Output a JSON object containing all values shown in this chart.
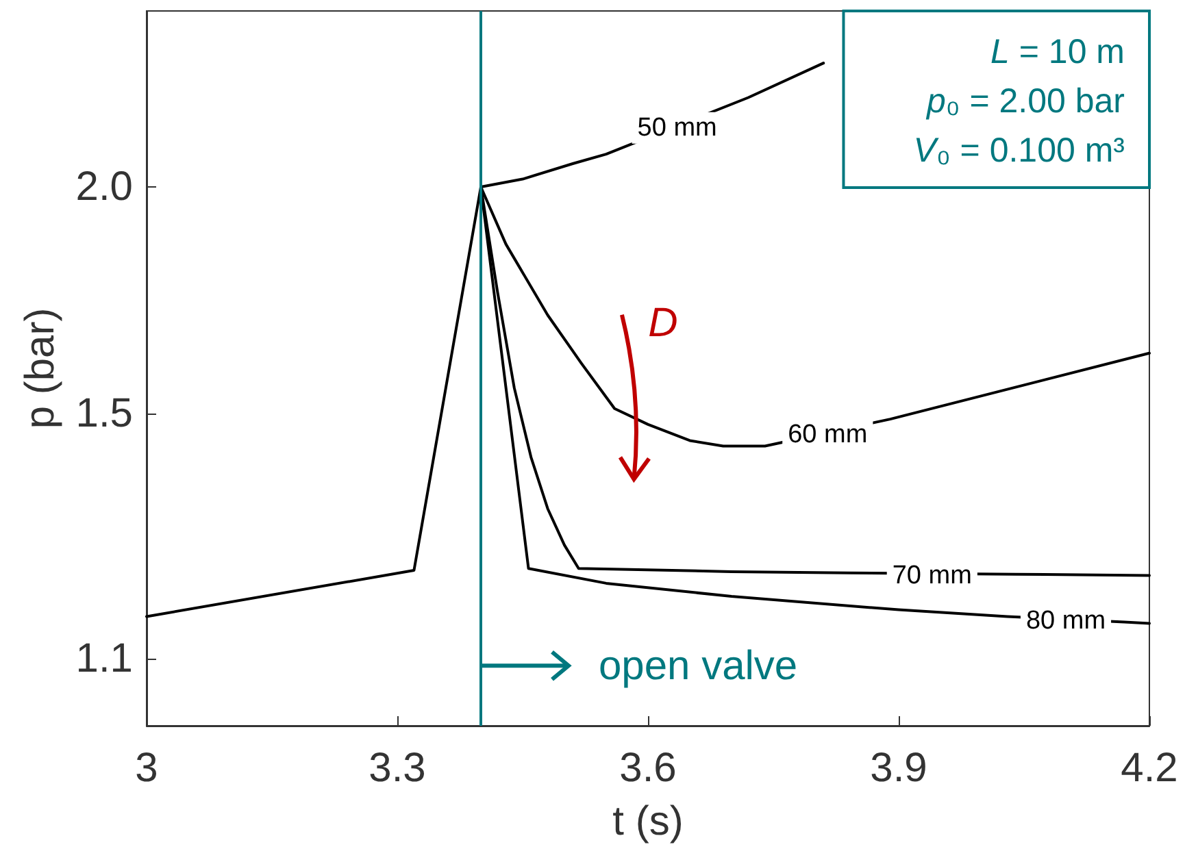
{
  "chart_data": {
    "type": "line",
    "xlabel": "t (s)",
    "ylabel": "p (bar)",
    "xlim": [
      3,
      4.2
    ],
    "xticks": [
      3,
      3.3,
      3.6,
      3.9,
      4.2
    ],
    "ylim": [
      1.01,
      2.5
    ],
    "yticks": [
      1.1,
      1.5,
      {
        "value": 2,
        "label": "2.0"
      }
    ],
    "log": "y",
    "grid": false,
    "legend": false,
    "line_style": "solid",
    "series": [
      {
        "color": "#000000",
        "x": [
          3,
          3.32,
          3.4
        ],
        "values": [
          1.16,
          1.23,
          2.0
        ]
      },
      {
        "name": "50 mm",
        "color": "#000000",
        "x": [
          3.4,
          3.45,
          3.51,
          3.55,
          3.72,
          3.81
        ],
        "values": [
          2.0,
          2.02,
          2.06,
          2.085,
          2.24,
          2.34
        ]
      },
      {
        "name": "60 mm",
        "color": "#000000",
        "x": [
          3.4,
          3.43,
          3.48,
          3.52,
          3.56,
          3.6,
          3.65,
          3.69,
          3.74,
          3.89,
          4.2
        ],
        "values": [
          2.0,
          1.86,
          1.7,
          1.6,
          1.51,
          1.48,
          1.45,
          1.44,
          1.44,
          1.49,
          1.62
        ]
      },
      {
        "name": "70 mm",
        "color": "#000000",
        "x": [
          3.4,
          3.42,
          3.44,
          3.46,
          3.48,
          3.5,
          3.517,
          3.7,
          3.84,
          4.04,
          4.2
        ],
        "values": [
          2.0,
          1.75,
          1.55,
          1.42,
          1.33,
          1.27,
          1.233,
          1.228,
          1.226,
          1.224,
          1.222
        ]
      },
      {
        "name": "80 mm",
        "color": "#000000",
        "x": [
          3.4,
          3.457,
          3.55,
          3.7,
          3.9,
          4.03,
          4.17,
          4.2
        ],
        "values": [
          2.0,
          1.233,
          1.21,
          1.19,
          1.17,
          1.16,
          1.152,
          1.15
        ]
      }
    ],
    "ref_lines": [
      {
        "axis": "x",
        "value": 3.4,
        "color": "#00787f"
      }
    ],
    "annotations": [
      "L = 10 m",
      "p₀ = 2.00 bar",
      "V₀ = 0.100 m³",
      "D",
      {
        "text": "open valve",
        "x": 3.4,
        "y": 1.09
      }
    ]
  }
}
